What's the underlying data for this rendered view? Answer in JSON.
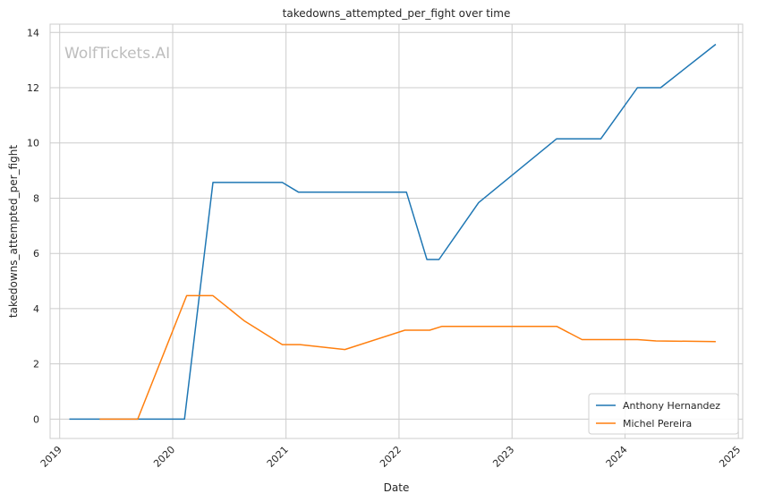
{
  "chart_data": {
    "type": "line",
    "title": "takedowns_attempted_per_fight over time",
    "xlabel": "Date",
    "ylabel": "takedowns_attempted_per_fight",
    "watermark": "WolfTickets.AI",
    "xlim": [
      "2018-12-01",
      "2025-01-15"
    ],
    "ylim": [
      -0.7,
      14.3
    ],
    "x_ticks": [
      "2019",
      "2020",
      "2021",
      "2022",
      "2023",
      "2024",
      "2025"
    ],
    "y_ticks": [
      "0",
      "2",
      "4",
      "6",
      "8",
      "10",
      "12",
      "14"
    ],
    "y_tick_values": [
      0,
      2,
      4,
      6,
      8,
      10,
      12,
      14
    ],
    "grid": true,
    "legend_position": "bottom-right",
    "series": [
      {
        "name": "Anthony Hernandez",
        "color": "#1f77b4",
        "points": [
          [
            "2019-02-01",
            0
          ],
          [
            "2020-02-08",
            0
          ],
          [
            "2020-05-10",
            8.57
          ],
          [
            "2020-12-20",
            8.57
          ],
          [
            "2021-02-10",
            8.22
          ],
          [
            "2022-01-25",
            8.22
          ],
          [
            "2022-04-01",
            5.78
          ],
          [
            "2022-05-10",
            5.78
          ],
          [
            "2022-09-15",
            7.84
          ],
          [
            "2023-05-25",
            10.15
          ],
          [
            "2023-10-15",
            10.15
          ],
          [
            "2024-02-10",
            12.0
          ],
          [
            "2024-04-25",
            12.0
          ],
          [
            "2024-10-20",
            13.57
          ]
        ]
      },
      {
        "name": "Michel Pereira",
        "color": "#ff7f0e",
        "points": [
          [
            "2019-05-10",
            0
          ],
          [
            "2019-09-10",
            0
          ],
          [
            "2020-02-15",
            4.47
          ],
          [
            "2020-05-10",
            4.47
          ],
          [
            "2020-08-20",
            3.55
          ],
          [
            "2020-12-20",
            2.7
          ],
          [
            "2021-02-15",
            2.7
          ],
          [
            "2021-07-10",
            2.52
          ],
          [
            "2022-01-20",
            3.22
          ],
          [
            "2022-04-10",
            3.22
          ],
          [
            "2022-05-20",
            3.36
          ],
          [
            "2023-05-25",
            3.36
          ],
          [
            "2023-08-15",
            2.88
          ],
          [
            "2024-02-10",
            2.88
          ],
          [
            "2024-04-10",
            2.83
          ],
          [
            "2024-10-20",
            2.81
          ]
        ]
      }
    ]
  }
}
